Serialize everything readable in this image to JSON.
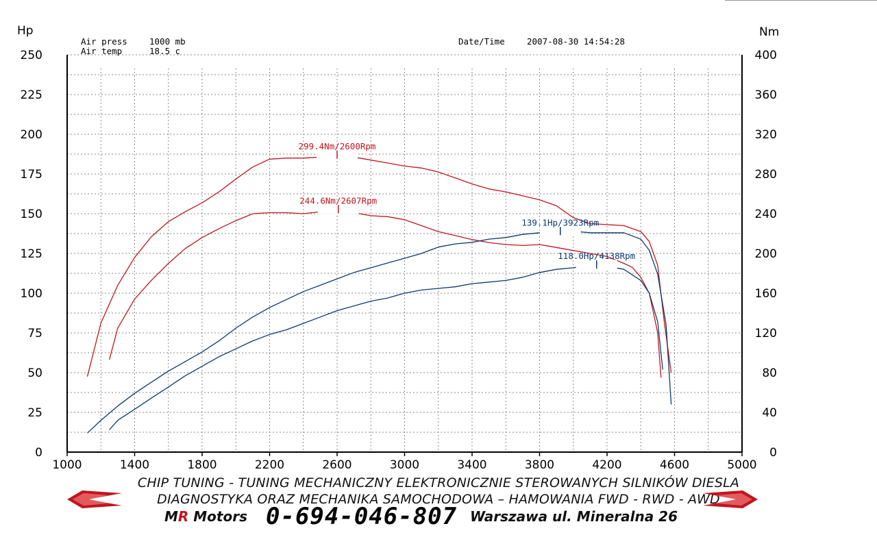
{
  "chart_data": {
    "type": "line",
    "meta": {
      "air_press_label": "Air press",
      "air_press_value": "1000 mb",
      "air_temp_label": "Air temp",
      "air_temp_value": "18.5 c",
      "datetime_label": "Date/Time",
      "datetime_value": "2007-08-30 14:54:28"
    },
    "left_unit": "Hp",
    "right_unit": "Nm",
    "x_ticks": [
      "1000",
      "1400",
      "1800",
      "2200",
      "2600",
      "3000",
      "3400",
      "3800",
      "4200",
      "4600",
      "5000"
    ],
    "left_ticks": [
      "0",
      "25",
      "50",
      "75",
      "100",
      "125",
      "150",
      "175",
      "200",
      "225",
      "250"
    ],
    "right_ticks": [
      "0",
      "40",
      "80",
      "120",
      "160",
      "200",
      "240",
      "280",
      "320",
      "360",
      "400"
    ],
    "xlim": [
      1000,
      5000
    ],
    "ylim_left": [
      0,
      250
    ],
    "ylim_right": [
      0,
      400
    ],
    "grid": true,
    "series": [
      {
        "axis": "right",
        "color": "#c0161c",
        "x": [
          1120,
          1200,
          1300,
          1400,
          1500,
          1600,
          1700,
          1800,
          1900,
          2000,
          2100,
          2200,
          2300,
          2400,
          2500,
          2600,
          2700,
          2800,
          2900,
          3000,
          3100,
          3200,
          3300,
          3400,
          3500,
          3600,
          3700,
          3800,
          3900,
          4000,
          4100,
          4200,
          4300,
          4400,
          4450,
          4500,
          4540,
          4580
        ],
        "y": [
          76,
          130,
          168,
          196,
          217,
          232,
          242,
          251,
          262,
          275,
          287,
          295,
          296,
          296,
          297,
          299,
          297,
          294,
          291,
          288,
          286,
          282,
          276,
          270,
          265,
          262,
          258,
          254,
          248,
          236,
          230,
          229,
          228,
          222,
          212,
          188,
          130,
          80
        ]
      },
      {
        "axis": "right",
        "color": "#c0161c",
        "x": [
          1250,
          1300,
          1400,
          1500,
          1600,
          1700,
          1800,
          1900,
          2000,
          2100,
          2200,
          2300,
          2400,
          2500,
          2607,
          2700,
          2800,
          2900,
          3000,
          3100,
          3200,
          3300,
          3400,
          3500,
          3600,
          3700,
          3800,
          3900,
          4000,
          4100,
          4200,
          4300,
          4350,
          4400,
          4450,
          4500,
          4520
        ],
        "y": [
          93,
          125,
          154,
          173,
          190,
          205,
          216,
          225,
          233,
          240,
          241,
          241,
          240,
          242,
          244,
          241,
          238,
          237,
          234,
          228,
          222,
          218,
          214,
          211,
          209,
          208,
          209,
          206,
          203,
          200,
          197,
          190,
          186,
          176,
          160,
          120,
          75
        ]
      },
      {
        "axis": "left",
        "color": "#0b3a6e",
        "x": [
          1120,
          1200,
          1300,
          1400,
          1500,
          1600,
          1700,
          1800,
          1900,
          2000,
          2100,
          2200,
          2300,
          2400,
          2500,
          2600,
          2700,
          2800,
          2900,
          3000,
          3100,
          3200,
          3300,
          3400,
          3500,
          3600,
          3700,
          3800,
          3923,
          4000,
          4100,
          4200,
          4300,
          4400,
          4450,
          4500,
          4550,
          4580
        ],
        "y": [
          12,
          20,
          29,
          37,
          44,
          51,
          57,
          63,
          70,
          78,
          85,
          91,
          96,
          101,
          105,
          109,
          113,
          116,
          119,
          122,
          125,
          129,
          131,
          132,
          134,
          135,
          137,
          138,
          139.1,
          139,
          138,
          138,
          138,
          134,
          127,
          112,
          80,
          30
        ]
      },
      {
        "axis": "left",
        "color": "#0b3a6e",
        "x": [
          1250,
          1300,
          1400,
          1500,
          1600,
          1700,
          1800,
          1900,
          2000,
          2100,
          2200,
          2300,
          2400,
          2500,
          2600,
          2700,
          2800,
          2900,
          3000,
          3100,
          3200,
          3300,
          3400,
          3500,
          3600,
          3700,
          3800,
          3900,
          4000,
          4138,
          4200,
          4300,
          4400,
          4450,
          4500,
          4530
        ],
        "y": [
          14,
          20,
          27,
          34,
          41,
          48,
          54,
          60,
          65,
          70,
          74,
          77,
          81,
          85,
          89,
          92,
          95,
          97,
          100,
          102,
          103,
          104,
          106,
          107,
          108,
          110,
          113,
          115,
          116,
          118,
          117,
          115,
          108,
          100,
          82,
          52
        ]
      }
    ],
    "annotations": [
      {
        "text": "299.4Nm/2600Rpm",
        "x": 2600,
        "axis": "right",
        "y": 299.4,
        "color": "#c0161c"
      },
      {
        "text": "244.6Nm/2607Rpm",
        "x": 2607,
        "axis": "right",
        "y": 244.6,
        "color": "#c0161c"
      },
      {
        "text": "139.1Hp/3923Rpm",
        "x": 3923,
        "axis": "left",
        "y": 139.1,
        "color": "#0b3a6e"
      },
      {
        "text": "118.0Hp/4138Rpm",
        "x": 4138,
        "axis": "left",
        "y": 118.0,
        "color": "#0b3a6e"
      }
    ]
  },
  "footer": {
    "line1": "CHIP TUNING - TUNING MECHANICZNY ELEKTRONICZNIE STEROWANYCH SILNIKÓW DIESLA",
    "line2": "DIAGNOSTYKA ORAZ MECHANIKA SAMOCHODOWA – HAMOWANIA FWD - RWD - AWD",
    "brand_m": "M",
    "brand_r": "R",
    "brand_rest": " Motors",
    "phone": "0-694-046-807",
    "address": "Warszawa ul. Mineralna 26",
    "accent_color": "#c0161c"
  }
}
